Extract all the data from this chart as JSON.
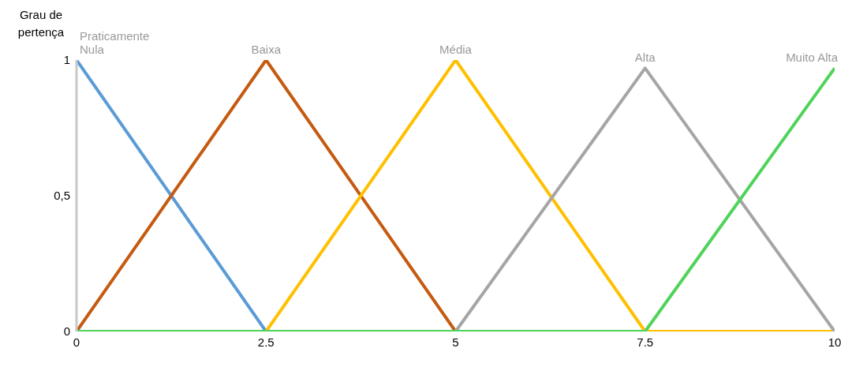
{
  "chart_data": {
    "type": "line",
    "ylabel": "Grau de pertença",
    "x": [
      0,
      2.5,
      5,
      7.5,
      10
    ],
    "series": [
      {
        "name": "Praticamente Nula",
        "color": "#5b9bd5",
        "values": [
          1,
          0,
          null,
          null,
          null
        ]
      },
      {
        "name": "Baixa",
        "color": "#c55a11",
        "values": [
          0,
          1,
          0,
          null,
          null
        ]
      },
      {
        "name": "Média",
        "color": "#ffc000",
        "values": [
          null,
          0,
          1,
          0,
          0
        ]
      },
      {
        "name": "Alta",
        "color": "#a5a5a5",
        "values": [
          null,
          null,
          0,
          0.97,
          0
        ]
      },
      {
        "name": "Muito Alta",
        "color": "#4fd35a",
        "values": [
          0,
          0,
          0,
          0,
          0.97
        ]
      }
    ],
    "xlim": [
      0,
      10
    ],
    "xticks": [
      0,
      2.5,
      5,
      7.5,
      10
    ],
    "ylim": [
      0,
      1
    ],
    "yticks": [
      0,
      {
        "value": 0.5,
        "label": "0,5"
      },
      1
    ],
    "grid": false,
    "legend": false
  }
}
